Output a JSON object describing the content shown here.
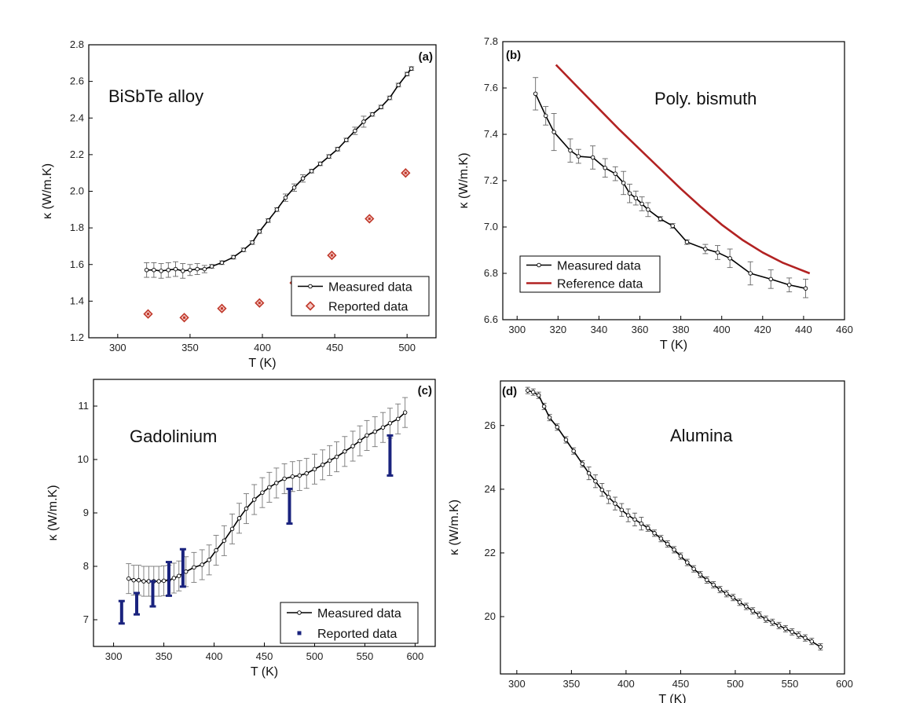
{
  "chart_data": [
    {
      "panel": "(a)",
      "type": "line",
      "annotation": "BiSbTe alloy",
      "xlabel": "T (K)",
      "ylabel": "κ (W/m.K)",
      "xlim": [
        280,
        520
      ],
      "ylim": [
        1.2,
        2.8
      ],
      "xticks": [
        300,
        350,
        400,
        450,
        500
      ],
      "yticks": [
        1.2,
        1.4,
        1.6,
        1.8,
        2.0,
        2.2,
        2.4,
        2.6,
        2.8
      ],
      "xtick_labels": [
        "300",
        "350",
        "400",
        "450",
        "500"
      ],
      "ytick_labels": [
        "1.2",
        "1.4",
        "1.6",
        "1.8",
        "2.0",
        "2.2",
        "2.4",
        "2.6",
        "2.8"
      ],
      "legend_position": "bottom-right",
      "series": [
        {
          "name": "Measured data",
          "style": "line-open-circle",
          "color": "#000000",
          "x": [
            320,
            325,
            330,
            335,
            340,
            345,
            350,
            355,
            360,
            365,
            372,
            380,
            387,
            393,
            398,
            404,
            410,
            416,
            422,
            428,
            434,
            440,
            446,
            452,
            458,
            464,
            470,
            476,
            482,
            488,
            494,
            500,
            503
          ],
          "y": [
            1.57,
            1.57,
            1.565,
            1.57,
            1.575,
            1.565,
            1.57,
            1.575,
            1.575,
            1.59,
            1.61,
            1.64,
            1.68,
            1.72,
            1.78,
            1.84,
            1.9,
            1.965,
            2.02,
            2.07,
            2.11,
            2.15,
            2.19,
            2.23,
            2.28,
            2.33,
            2.38,
            2.42,
            2.46,
            2.51,
            2.58,
            2.64,
            2.67
          ],
          "err": [
            0.04,
            0.04,
            0.04,
            0.04,
            0.04,
            0.04,
            0.03,
            0.03,
            0.02,
            0.01,
            0.01,
            0.01,
            0.01,
            0.01,
            0.01,
            0.01,
            0.01,
            0.02,
            0.02,
            0.02,
            0.01,
            0.01,
            0.01,
            0.01,
            0.01,
            0.02,
            0.03,
            0.01,
            0.01,
            0.01,
            0.01,
            0.01,
            0.01
          ]
        },
        {
          "name": "Reported data",
          "style": "diamond",
          "color": "#c0392b",
          "x": [
            321,
            346,
            372,
            398,
            422,
            448,
            474,
            499
          ],
          "y": [
            1.33,
            1.31,
            1.36,
            1.39,
            1.5,
            1.65,
            1.85,
            2.1
          ]
        }
      ]
    },
    {
      "panel": "(b)",
      "type": "line",
      "annotation": "Poly. bismuth",
      "xlabel": "T (K)",
      "ylabel": "κ (W/m.K)",
      "xlim": [
        293,
        460
      ],
      "ylim": [
        6.6,
        7.8
      ],
      "xticks": [
        300,
        320,
        340,
        360,
        380,
        400,
        420,
        440,
        460
      ],
      "yticks": [
        6.6,
        6.8,
        7.0,
        7.2,
        7.4,
        7.6,
        7.8
      ],
      "xtick_labels": [
        "300",
        "320",
        "340",
        "360",
        "380",
        "400",
        "420",
        "440",
        "460"
      ],
      "ytick_labels": [
        "6.6",
        "6.8",
        "7.0",
        "7.2",
        "7.4",
        "7.6",
        "7.8"
      ],
      "legend_position": "bottom-left",
      "series": [
        {
          "name": "Measured data",
          "style": "line-open-circle",
          "color": "#000000",
          "x": [
            309,
            314,
            318,
            326,
            330,
            337,
            343,
            348,
            352,
            355,
            358,
            361,
            364,
            370,
            376,
            383,
            392,
            398,
            404,
            414,
            424,
            433,
            441
          ],
          "y": [
            7.575,
            7.48,
            7.41,
            7.33,
            7.305,
            7.3,
            7.255,
            7.23,
            7.19,
            7.145,
            7.125,
            7.1,
            7.075,
            7.035,
            7.005,
            6.935,
            6.905,
            6.89,
            6.865,
            6.8,
            6.775,
            6.75,
            6.735
          ],
          "err": [
            0.07,
            0.04,
            0.08,
            0.05,
            0.03,
            0.05,
            0.04,
            0.03,
            0.05,
            0.04,
            0.03,
            0.03,
            0.03,
            0.01,
            0.01,
            0.01,
            0.02,
            0.03,
            0.04,
            0.05,
            0.04,
            0.03,
            0.04
          ]
        },
        {
          "name": "Reference data",
          "style": "line",
          "color": "#b22222",
          "x": [
            319,
            330,
            340,
            350,
            360,
            370,
            380,
            390,
            400,
            410,
            420,
            430,
            443
          ],
          "y": [
            7.7,
            7.6,
            7.51,
            7.42,
            7.335,
            7.25,
            7.165,
            7.085,
            7.01,
            6.945,
            6.89,
            6.845,
            6.8
          ]
        }
      ]
    },
    {
      "panel": "(c)",
      "type": "line",
      "annotation": "Gadolinium",
      "xlabel": "T (K)",
      "ylabel": "κ (W/m.K)",
      "xlim": [
        280,
        620
      ],
      "ylim": [
        6.5,
        11.5
      ],
      "xticks": [
        300,
        350,
        400,
        450,
        500,
        550,
        600
      ],
      "yticks": [
        7,
        8,
        9,
        10,
        11
      ],
      "xtick_labels": [
        "300",
        "350",
        "400",
        "450",
        "500",
        "550",
        "600"
      ],
      "ytick_labels": [
        "7",
        "8",
        "9",
        "10",
        "11"
      ],
      "legend_position": "bottom-right",
      "series": [
        {
          "name": "Measured data",
          "style": "line-open-circle",
          "color": "#000000",
          "x": [
            315,
            320,
            325,
            330,
            335,
            340,
            345,
            350,
            355,
            360,
            365,
            372,
            380,
            388,
            395,
            402,
            410,
            418,
            425,
            432,
            440,
            448,
            455,
            462,
            470,
            478,
            485,
            492,
            500,
            508,
            515,
            522,
            530,
            538,
            545,
            552,
            560,
            568,
            575,
            583,
            590
          ],
          "y": [
            7.77,
            7.74,
            7.74,
            7.72,
            7.72,
            7.72,
            7.72,
            7.73,
            7.74,
            7.78,
            7.82,
            7.9,
            7.98,
            8.03,
            8.12,
            8.3,
            8.48,
            8.7,
            8.9,
            9.08,
            9.25,
            9.38,
            9.48,
            9.56,
            9.64,
            9.68,
            9.7,
            9.74,
            9.82,
            9.9,
            9.98,
            10.05,
            10.15,
            10.25,
            10.35,
            10.45,
            10.52,
            10.6,
            10.68,
            10.76,
            10.88
          ]
        },
        {
          "name": "Reported data",
          "style": "range-bar",
          "color": "#1a237e",
          "x": [
            308,
            323,
            339,
            355,
            369,
            475,
            575
          ],
          "low": [
            6.93,
            7.1,
            7.25,
            7.45,
            7.62,
            8.8,
            9.7
          ],
          "high": [
            7.35,
            7.5,
            7.72,
            8.08,
            8.32,
            9.45,
            10.45
          ]
        }
      ]
    },
    {
      "panel": "(d)",
      "type": "line",
      "annotation": "Alumina",
      "xlabel": "T (K)",
      "ylabel": "κ (W/m.K)",
      "xlim": [
        285,
        600
      ],
      "ylim": [
        18.2,
        27.4
      ],
      "xticks": [
        300,
        350,
        400,
        450,
        500,
        550,
        600
      ],
      "yticks": [
        20,
        22,
        24,
        26
      ],
      "xtick_labels": [
        "300",
        "350",
        "400",
        "450",
        "500",
        "550",
        "600"
      ],
      "ytick_labels": [
        "20",
        "22",
        "24",
        "26"
      ],
      "series": [
        {
          "name": "Measured data",
          "style": "line-open-circle",
          "color": "#000000",
          "x": [
            310,
            315,
            320,
            325,
            330,
            337,
            345,
            352,
            360,
            366,
            372,
            378,
            384,
            390,
            396,
            402,
            408,
            414,
            420,
            426,
            432,
            438,
            444,
            450,
            456,
            462,
            468,
            474,
            480,
            486,
            492,
            498,
            504,
            510,
            516,
            522,
            528,
            534,
            540,
            546,
            552,
            558,
            564,
            570,
            578
          ],
          "y": [
            27.1,
            27.05,
            26.95,
            26.6,
            26.25,
            25.95,
            25.55,
            25.2,
            24.8,
            24.5,
            24.25,
            23.98,
            23.75,
            23.55,
            23.35,
            23.18,
            23.05,
            22.92,
            22.78,
            22.62,
            22.45,
            22.28,
            22.1,
            21.9,
            21.7,
            21.5,
            21.32,
            21.15,
            21.0,
            20.85,
            20.72,
            20.6,
            20.45,
            20.32,
            20.18,
            20.05,
            19.92,
            19.82,
            19.72,
            19.62,
            19.52,
            19.42,
            19.33,
            19.22,
            19.05
          ]
        }
      ]
    }
  ]
}
